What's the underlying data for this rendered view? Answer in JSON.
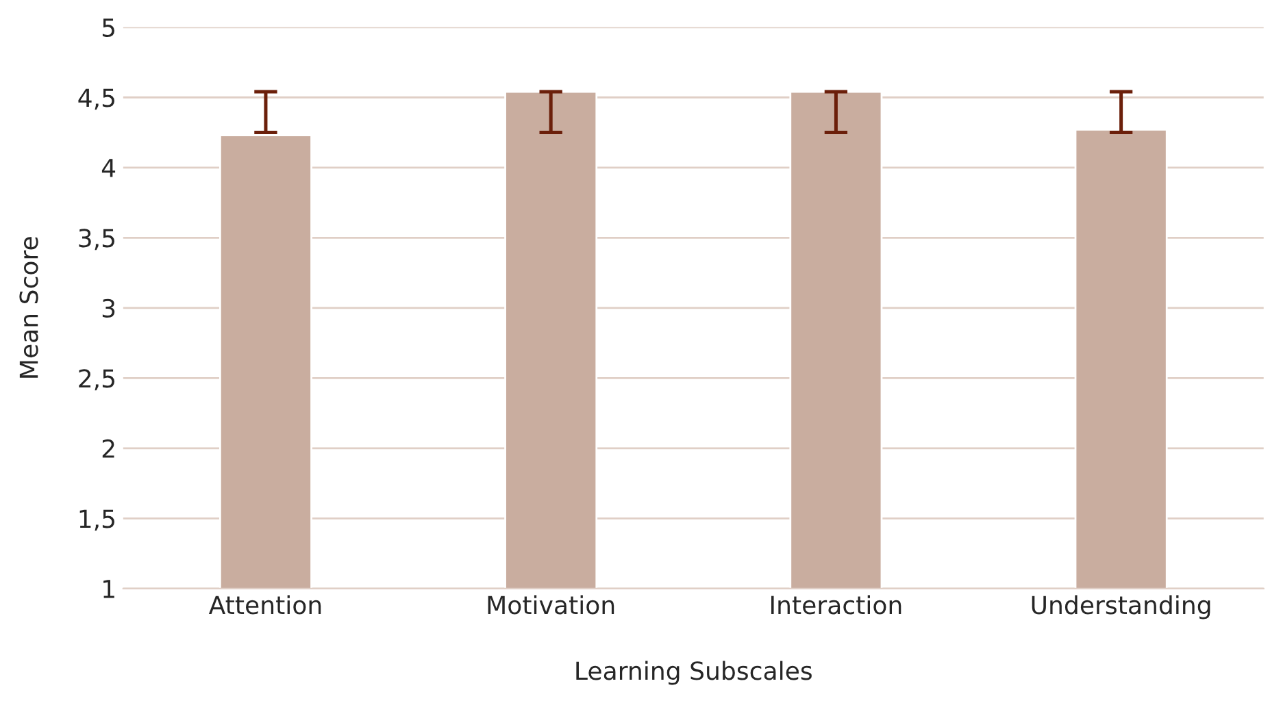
{
  "chart_data": {
    "type": "bar",
    "xlabel": "Learning Subscales",
    "ylabel": "Mean Score",
    "categories": [
      "Attention",
      "Motivation",
      "Interaction",
      "Understanding"
    ],
    "values": [
      4.23,
      4.54,
      4.54,
      4.27
    ],
    "errors": [
      [
        4.25,
        4.54
      ],
      [
        4.25,
        4.54
      ],
      [
        4.25,
        4.54
      ],
      [
        4.25,
        4.54
      ]
    ],
    "color": "#c9ad9f",
    "ylim": [
      1,
      5
    ],
    "yticks": [
      1,
      {
        "value": 1.5,
        "label": "1,5"
      },
      2,
      {
        "value": 2.5,
        "label": "2,5"
      },
      3,
      {
        "value": 3.5,
        "label": "3,5"
      },
      4,
      {
        "value": 4.5,
        "label": "4,5"
      },
      5
    ],
    "grid": "y",
    "legend": false
  }
}
